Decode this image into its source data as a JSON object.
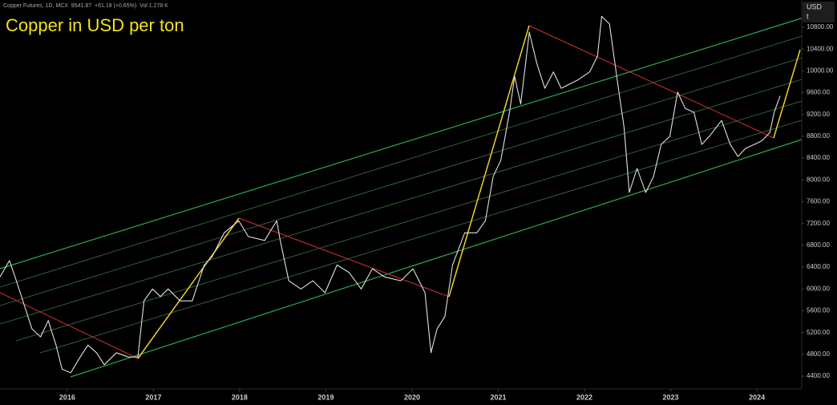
{
  "chart_data": {
    "type": "line",
    "header": "Copper Futures, 1D, MCX  9541.87  +61.18 (+0.65%)  Vol 1.278 K",
    "title": "Copper in USD per ton",
    "currency": "USD",
    "unit": "t",
    "x": [
      2015.22,
      2015.33,
      2015.41,
      2015.5,
      2015.59,
      2015.69,
      2015.78,
      2015.87,
      2015.94,
      2016.04,
      2016.15,
      2016.24,
      2016.34,
      2016.43,
      2016.57,
      2016.71,
      2016.82,
      2016.89,
      2016.99,
      2017.08,
      2017.17,
      2017.31,
      2017.45,
      2017.59,
      2017.68,
      2017.82,
      2017.99,
      2018.1,
      2018.29,
      2018.43,
      2018.47,
      2018.57,
      2018.71,
      2018.85,
      2018.99,
      2019.13,
      2019.27,
      2019.41,
      2019.54,
      2019.68,
      2019.87,
      2020.01,
      2020.15,
      2020.22,
      2020.29,
      2020.38,
      2020.47,
      2020.61,
      2020.75,
      2020.85,
      2020.94,
      2021.03,
      2021.13,
      2021.19,
      2021.26,
      2021.36,
      2021.45,
      2021.54,
      2021.64,
      2021.73,
      2021.92,
      2022.06,
      2022.15,
      2022.2,
      2022.29,
      2022.38,
      2022.46,
      2022.52,
      2022.61,
      2022.71,
      2022.8,
      2022.89,
      2022.99,
      2023.08,
      2023.17,
      2023.27,
      2023.36,
      2023.45,
      2023.59,
      2023.69,
      2023.78,
      2023.87,
      2023.97,
      2024.06,
      2024.15,
      2024.2,
      2024.27
    ],
    "series": [
      {
        "name": "Copper Futures",
        "color": "#e0e0e0",
        "values": [
          6220,
          6520,
          6150,
          5710,
          5270,
          5120,
          5420,
          4970,
          4530,
          4460,
          4750,
          4970,
          4830,
          4610,
          4830,
          4750,
          4750,
          5780,
          6000,
          5860,
          6000,
          5780,
          5780,
          6440,
          6590,
          7030,
          7250,
          6960,
          6890,
          7250,
          6890,
          6150,
          6000,
          6150,
          5930,
          6440,
          6300,
          6000,
          6370,
          6220,
          6150,
          6370,
          5930,
          4830,
          5270,
          5490,
          6440,
          7030,
          7030,
          7250,
          8060,
          8360,
          9240,
          9900,
          9390,
          10710,
          10120,
          9680,
          9980,
          9680,
          9830,
          9980,
          10270,
          11000,
          10860,
          9830,
          8950,
          7770,
          8210,
          7770,
          8060,
          8650,
          8800,
          9610,
          9310,
          9240,
          8650,
          8800,
          9090,
          8650,
          8430,
          8580,
          8650,
          8720,
          8870,
          9240,
          9540
        ]
      }
    ],
    "xlim": [
      2015.22,
      2024.52
    ],
    "xticks": [
      2016,
      2017,
      2018,
      2019,
      2020,
      2021,
      2022,
      2023,
      2024
    ],
    "ylim": [
      4165,
      11300
    ],
    "yticks": [
      {
        "value": 4400,
        "label": "4400.00"
      },
      {
        "value": 4800,
        "label": "4800.00"
      },
      {
        "value": 5200,
        "label": "5200.00"
      },
      {
        "value": 5600,
        "label": "5600.00"
      },
      {
        "value": 6000,
        "label": "6000.00"
      },
      {
        "value": 6400,
        "label": "6400.00"
      },
      {
        "value": 6800,
        "label": "6800.00"
      },
      {
        "value": 7200,
        "label": "7200.00"
      },
      {
        "value": 7600,
        "label": "7600.00"
      },
      {
        "value": 8000,
        "label": "8000.00"
      },
      {
        "value": 8400,
        "label": "8400.00"
      },
      {
        "value": 8800,
        "label": "8800.00"
      },
      {
        "value": 9200,
        "label": "9200.00"
      },
      {
        "value": 9600,
        "label": "9600.00"
      },
      {
        "value": 10000,
        "label": "10000.00"
      },
      {
        "value": 10400,
        "label": "10400.00"
      },
      {
        "value": 10800,
        "label": "10800.00"
      }
    ],
    "grid": false
  }
}
